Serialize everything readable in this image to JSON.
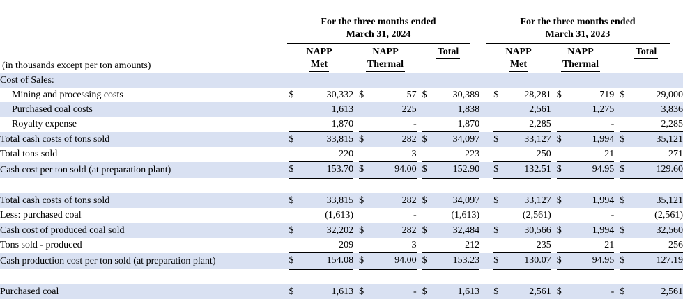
{
  "header": {
    "period_2024_line1": "For the three months ended",
    "period_2024_line2": "March 31, 2024",
    "period_2023_line1": "For the three months ended",
    "period_2023_line2": "March 31, 2023",
    "cols": [
      {
        "l1": "NAPP",
        "l2": "Met"
      },
      {
        "l1": "NAPP",
        "l2": "Thermal"
      },
      {
        "l1": "",
        "l2": "Total"
      },
      {
        "l1": "NAPP",
        "l2": "Met"
      },
      {
        "l1": "NAPP",
        "l2": "Thermal"
      },
      {
        "l1": "",
        "l2": "Total"
      }
    ],
    "units": "(in thousands except per ton amounts)"
  },
  "rows": [
    {
      "label": "Cost of Sales:",
      "type": "section",
      "cells": []
    },
    {
      "label": "Mining and processing costs",
      "type": "indent",
      "cells": [
        [
          "$",
          "30,332"
        ],
        [
          "$",
          "57"
        ],
        [
          "$",
          "30,389"
        ],
        [
          "$",
          "28,281"
        ],
        [
          "$",
          "719"
        ],
        [
          "$",
          "29,000"
        ]
      ]
    },
    {
      "label": "Purchased coal costs",
      "type": "indent",
      "cells": [
        [
          "",
          "1,613"
        ],
        [
          "",
          "225"
        ],
        [
          "",
          "1,838"
        ],
        [
          "",
          "2,561"
        ],
        [
          "",
          "1,275"
        ],
        [
          "",
          "3,836"
        ]
      ]
    },
    {
      "label": "Royalty expense",
      "type": "indent",
      "cells": [
        [
          "",
          "1,870"
        ],
        [
          "",
          "-"
        ],
        [
          "",
          "1,870"
        ],
        [
          "",
          "2,285"
        ],
        [
          "",
          "-"
        ],
        [
          "",
          "2,285"
        ]
      ]
    },
    {
      "label": "Total cash costs of tons sold",
      "type": "total",
      "cells": [
        [
          "$",
          "33,815"
        ],
        [
          "$",
          "282"
        ],
        [
          "$",
          "34,097"
        ],
        [
          "$",
          "33,127"
        ],
        [
          "$",
          "1,994"
        ],
        [
          "$",
          "35,121"
        ]
      ]
    },
    {
      "label": "Total tons sold",
      "type": "plain",
      "cells": [
        [
          "",
          "220"
        ],
        [
          "",
          "3"
        ],
        [
          "",
          "223"
        ],
        [
          "",
          "250"
        ],
        [
          "",
          "21"
        ],
        [
          "",
          "271"
        ]
      ]
    },
    {
      "label": "Cash cost per ton sold (at preparation plant)",
      "type": "grand",
      "cells": [
        [
          "$",
          "153.70"
        ],
        [
          "$",
          "94.00"
        ],
        [
          "$",
          "152.90"
        ],
        [
          "$",
          "132.51"
        ],
        [
          "$",
          "94.95"
        ],
        [
          "$",
          "129.60"
        ]
      ]
    },
    {
      "label": "",
      "type": "spacer",
      "cells": []
    },
    {
      "label": "Total cash costs of tons sold",
      "type": "plain",
      "cells": [
        [
          "$",
          "33,815"
        ],
        [
          "$",
          "282"
        ],
        [
          "$",
          "34,097"
        ],
        [
          "$",
          "33,127"
        ],
        [
          "$",
          "1,994"
        ],
        [
          "$",
          "35,121"
        ]
      ]
    },
    {
      "label": "Less: purchased coal",
      "type": "plain",
      "cells": [
        [
          "",
          "(1,613)"
        ],
        [
          "",
          "-"
        ],
        [
          "",
          "(1,613)"
        ],
        [
          "",
          "(2,561)"
        ],
        [
          "",
          "-"
        ],
        [
          "",
          "(2,561)"
        ]
      ]
    },
    {
      "label": "Cash cost of produced coal sold",
      "type": "total",
      "cells": [
        [
          "$",
          "32,202"
        ],
        [
          "$",
          "282"
        ],
        [
          "$",
          "32,484"
        ],
        [
          "$",
          "30,566"
        ],
        [
          "$",
          "1,994"
        ],
        [
          "$",
          "32,560"
        ]
      ]
    },
    {
      "label": "Tons sold - produced",
      "type": "plain",
      "cells": [
        [
          "",
          "209"
        ],
        [
          "",
          "3"
        ],
        [
          "",
          "212"
        ],
        [
          "",
          "235"
        ],
        [
          "",
          "21"
        ],
        [
          "",
          "256"
        ]
      ]
    },
    {
      "label": "Cash production cost per ton sold (at preparation plant)",
      "type": "grand",
      "cells": [
        [
          "$",
          "154.08"
        ],
        [
          "$",
          "94.00"
        ],
        [
          "$",
          "153.23"
        ],
        [
          "$",
          "130.07"
        ],
        [
          "$",
          "94.95"
        ],
        [
          "$",
          "127.19"
        ]
      ]
    },
    {
      "label": "",
      "type": "spacer",
      "cells": []
    },
    {
      "label": "Purchased coal",
      "type": "plain",
      "cells": [
        [
          "$",
          "1,613"
        ],
        [
          "$",
          "-"
        ],
        [
          "$",
          "1,613"
        ],
        [
          "$",
          "2,561"
        ],
        [
          "$",
          "-"
        ],
        [
          "$",
          "2,561"
        ]
      ]
    }
  ],
  "colors": {
    "shade": "#d9e1f2"
  }
}
